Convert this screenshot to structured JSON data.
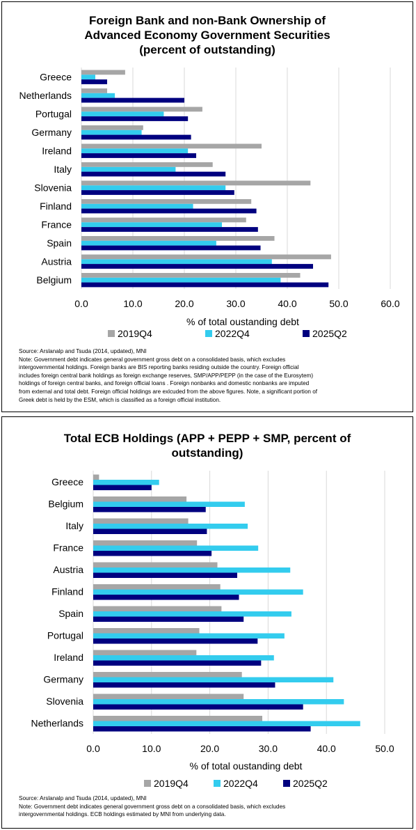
{
  "colors": {
    "s2019": "#A6A6A6",
    "s2022": "#33CCEE",
    "s2025": "#00007F"
  },
  "chart_data": [
    {
      "type": "bar",
      "orientation": "horizontal",
      "title_lines": [
        "Foreign Bank and non-Bank Ownership of",
        "Advanced Economy Government Securities",
        "(percent of outstanding)"
      ],
      "xlabel": "% of total oustanding  debt",
      "ylabel": "",
      "xlim": [
        0,
        60
      ],
      "xticks": [
        "0.0",
        "10.0",
        "20.0",
        "30.0",
        "40.0",
        "50.0",
        "60.0"
      ],
      "grid": true,
      "legend_position": "bottom",
      "categories": [
        "Greece",
        "Netherlands",
        "Portugal",
        "Germany",
        "Ireland",
        "Italy",
        "Slovenia",
        "Finland",
        "France",
        "Spain",
        "Austria",
        "Belgium"
      ],
      "series": [
        {
          "name": "2019Q4",
          "values": [
            8.5,
            5.0,
            23.5,
            12.0,
            35.0,
            25.5,
            44.5,
            33.0,
            32.0,
            37.5,
            48.5,
            42.5
          ]
        },
        {
          "name": "2022Q4",
          "values": [
            2.7,
            6.5,
            16.0,
            11.7,
            20.7,
            18.3,
            28.0,
            21.7,
            27.3,
            26.2,
            37.0,
            38.7
          ]
        },
        {
          "name": "2025Q2",
          "values": [
            5.0,
            20.0,
            20.7,
            21.3,
            22.3,
            28.0,
            29.7,
            34.0,
            34.3,
            34.8,
            45.0,
            48.0
          ]
        }
      ],
      "notes": [
        "Source:  Arslanalp and Tsuda (2014, updated), MNI",
        "Note:  Government debt indicates general government gross  debt on a consolidated basis,  which excludes",
        "intergovernmental holdings. Foreign banks are BIS reporting banks  residing outside the country. Foreign official",
        "includes foreign central bank holdings as foreign exchange reserves,  SMP/APP/PEPP (in the case  of the Eurosytem)",
        "holdings of foreign central banks,  and foreign official loans . Foreign nonbanks and domestic nonbanks are imputed",
        "from external and total debt. Foreign official holdings are exlcuded from the above figures. Note, a significant portion of",
        "Greek debt is held by the ESM, which is classified as a foreign official institution."
      ]
    },
    {
      "type": "bar",
      "orientation": "horizontal",
      "title_lines": [
        "Total ECB Holdings (APP + PEPP + SMP, percent of",
        "outstanding)"
      ],
      "xlabel": "% of total oustanding  debt",
      "ylabel": "",
      "xlim": [
        0,
        50
      ],
      "xticks": [
        "0.0",
        "10.0",
        "20.0",
        "30.0",
        "40.0",
        "50.0"
      ],
      "grid": true,
      "legend_position": "bottom",
      "categories": [
        "Greece",
        "Belgium",
        "Italy",
        "France",
        "Austria",
        "Finland",
        "Spain",
        "Portugal",
        "Ireland",
        "Germany",
        "Slovenia",
        "Netherlands"
      ],
      "series": [
        {
          "name": "2019Q4",
          "values": [
            1.0,
            16.0,
            16.3,
            17.8,
            21.3,
            21.8,
            22.0,
            18.2,
            17.7,
            25.5,
            25.8,
            29.0
          ]
        },
        {
          "name": "2022Q4",
          "values": [
            11.3,
            26.0,
            26.5,
            28.3,
            33.8,
            36.0,
            34.0,
            32.8,
            31.0,
            41.2,
            43.0,
            45.8
          ]
        },
        {
          "name": "2025Q2",
          "values": [
            10.0,
            19.3,
            19.5,
            20.3,
            24.7,
            25.0,
            25.8,
            28.2,
            28.8,
            31.2,
            36.0,
            37.3
          ]
        }
      ],
      "notes": [
        "Source:  Arslanalp and Tsuda (2014, updated), MNI",
        "Note:   Government debt indicates general government gross  debt on a consolidated basis,  which excludes",
        "intergovernmental holdings. ECB holdings estimated by MNI from underlying data."
      ]
    }
  ]
}
